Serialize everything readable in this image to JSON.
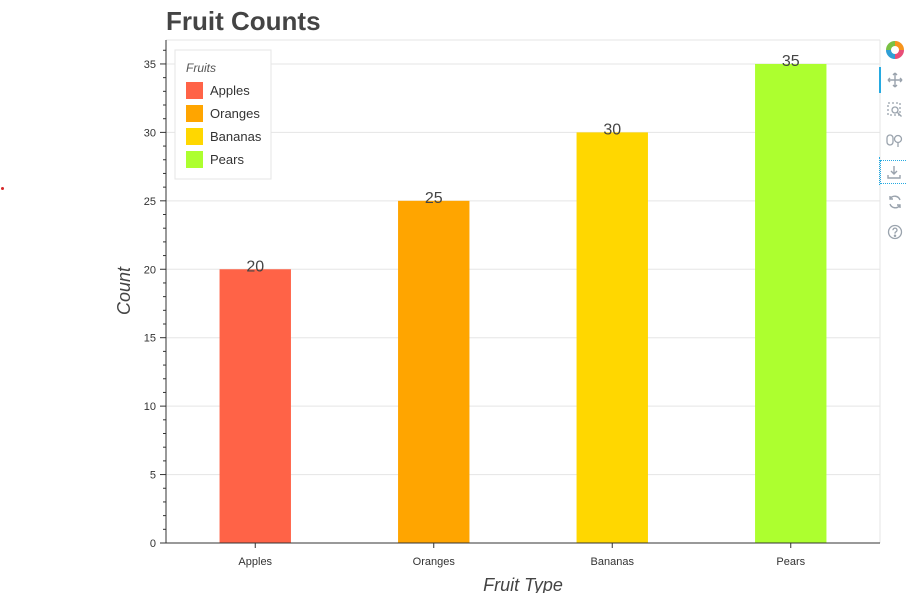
{
  "chart_data": {
    "type": "bar",
    "title": "Fruit Counts",
    "xlabel": "Fruit Type",
    "ylabel": "Count",
    "categories": [
      "Apples",
      "Oranges",
      "Bananas",
      "Pears"
    ],
    "values": [
      20,
      25,
      30,
      35
    ],
    "colors": [
      "#ff6347",
      "#ffa500",
      "#ffd700",
      "#adff2f"
    ],
    "ylim": [
      0,
      36.75
    ],
    "yticks": [
      0,
      5,
      10,
      15,
      20,
      25,
      30,
      35
    ],
    "grid": true,
    "legend": {
      "title": "Fruits",
      "placement": "top-left",
      "entries": [
        "Apples",
        "Oranges",
        "Bananas",
        "Pears"
      ]
    },
    "data_labels": [
      "20",
      "25",
      "30",
      "35"
    ]
  },
  "toolbar": {
    "tools": [
      "bokeh-logo-icon",
      "pan-icon",
      "box-zoom-icon",
      "wheel-zoom-icon",
      "save-icon",
      "reset-icon",
      "help-icon"
    ]
  }
}
